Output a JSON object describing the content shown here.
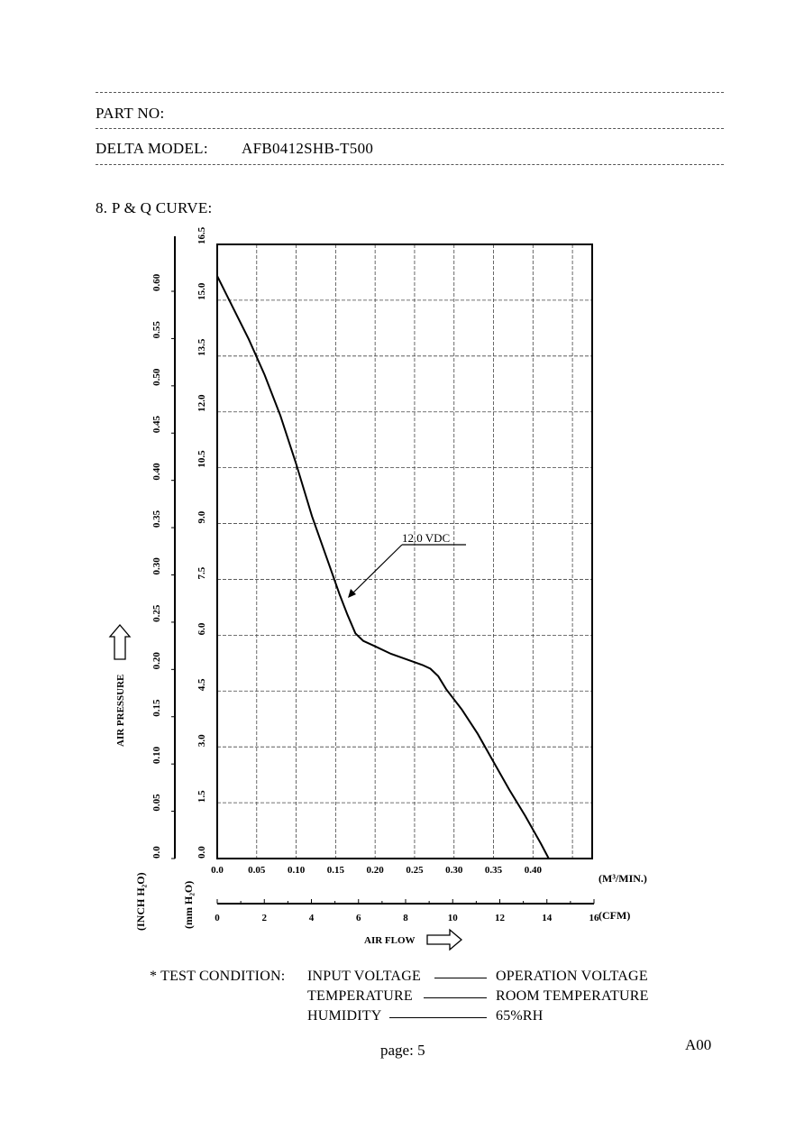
{
  "header": {
    "part_no_label": "PART NO:",
    "model_label": "DELTA MODEL:",
    "model_value": "AFB0412SHB-T500"
  },
  "section_title": "8. P & Q CURVE:",
  "chart_data": {
    "type": "line",
    "title": "",
    "xlabel": "AIR FLOW",
    "ylabel": "AIR PRESSURE",
    "x_unit_primary": "(M³/MIN.)",
    "x_unit_secondary": "(CFM)",
    "y_unit_primary": "(mm H₂O)",
    "y_unit_secondary": "(INCH H₂O)",
    "xlim": [
      0,
      0.475
    ],
    "ylim": [
      0,
      16.5
    ],
    "grid": true,
    "x_ticks_m3": [
      "0.0",
      "0.05",
      "0.10",
      "0.15",
      "0.20",
      "0.25",
      "0.30",
      "0.35",
      "0.40"
    ],
    "x_ticks_cfm": [
      "0",
      "2",
      "4",
      "6",
      "8",
      "10",
      "12",
      "14",
      "16"
    ],
    "y_ticks_mm": [
      "0.0",
      "1.5",
      "3.0",
      "4.5",
      "6.0",
      "7.5",
      "9.0",
      "10.5",
      "12.0",
      "13.5",
      "15.0",
      "16.5"
    ],
    "y_ticks_inch": [
      "0.0",
      "0.05",
      "0.10",
      "0.15",
      "0.20",
      "0.25",
      "0.30",
      "0.35",
      "0.40",
      "0.45",
      "0.50",
      "0.55",
      "0.60"
    ],
    "series": [
      {
        "name": "12.0 VDC",
        "x": [
          0.0,
          0.02,
          0.04,
          0.06,
          0.08,
          0.1,
          0.12,
          0.14,
          0.155,
          0.165,
          0.175,
          0.185,
          0.2,
          0.22,
          0.24,
          0.26,
          0.27,
          0.28,
          0.29,
          0.31,
          0.33,
          0.35,
          0.37,
          0.39,
          0.41,
          0.42
        ],
        "y": [
          15.65,
          14.8,
          13.95,
          13.0,
          11.9,
          10.6,
          9.2,
          8.0,
          7.1,
          6.55,
          6.05,
          5.85,
          5.7,
          5.5,
          5.35,
          5.2,
          5.1,
          4.9,
          4.55,
          4.0,
          3.35,
          2.6,
          1.85,
          1.15,
          0.4,
          0.0
        ]
      }
    ],
    "annotation": "12.0 VDC"
  },
  "test_condition": {
    "label": "* TEST CONDITION:",
    "rows": [
      {
        "name": "INPUT VOLTAGE",
        "value": "OPERATION VOLTAGE"
      },
      {
        "name": "TEMPERATURE",
        "value": "ROOM TEMPERATURE"
      },
      {
        "name": "HUMIDITY",
        "value": "65%RH"
      }
    ]
  },
  "footer": {
    "page": "page: 5",
    "revision": "A00"
  }
}
